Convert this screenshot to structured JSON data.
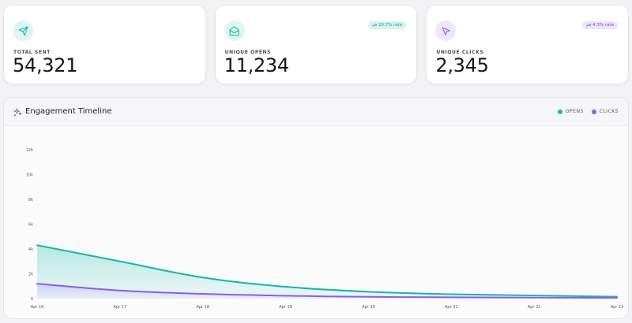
{
  "stats": [
    {
      "label": "TOTAL SENT",
      "value": "54,321",
      "icon": "send-icon",
      "badge": null,
      "accent": "#14b8a6",
      "icon_bg": "#dff5f1"
    },
    {
      "label": "UNIQUE OPENS",
      "value": "11,234",
      "icon": "envelope-open-icon",
      "badge": "20.7% rate",
      "badge_icon": "trend-up-icon",
      "accent": "#14b8a6",
      "icon_bg": "#dff5f1",
      "badge_bg": "#d8f3ee",
      "badge_color": "#0f9f8f"
    },
    {
      "label": "UNIQUE CLICKS",
      "value": "2,345",
      "icon": "cursor-click-icon",
      "badge": "4.3% rate",
      "badge_icon": "trend-up-icon",
      "accent": "#8b5cf6",
      "icon_bg": "#efe8fd",
      "badge_bg": "#ece5fc",
      "badge_color": "#7c3aed"
    }
  ],
  "timeline": {
    "title": "Engagement Timeline",
    "title_icon": "sparkle-icon",
    "legend": [
      {
        "label": "OPENS",
        "color": "#14b8a6"
      },
      {
        "label": "CLICKS",
        "color": "#8b5cf6"
      }
    ]
  },
  "chart_data": {
    "type": "area",
    "x": [
      "Apr 16",
      "Apr 17",
      "Apr 18",
      "Apr 19",
      "Apr 20",
      "Apr 21",
      "Apr 22",
      "Apr 23"
    ],
    "series": [
      {
        "name": "OPENS",
        "color": "#14b8a6",
        "values": [
          4300,
          3000,
          1700,
          950,
          550,
          350,
          250,
          150
        ]
      },
      {
        "name": "CLICKS",
        "color": "#8b5cf6",
        "values": [
          1200,
          650,
          380,
          230,
          140,
          100,
          80,
          60
        ]
      }
    ],
    "y_ticks": [
      "0",
      "2k",
      "4k",
      "6k",
      "8k",
      "10k",
      "12k"
    ],
    "ylim": [
      0,
      12000
    ],
    "grid": false
  }
}
